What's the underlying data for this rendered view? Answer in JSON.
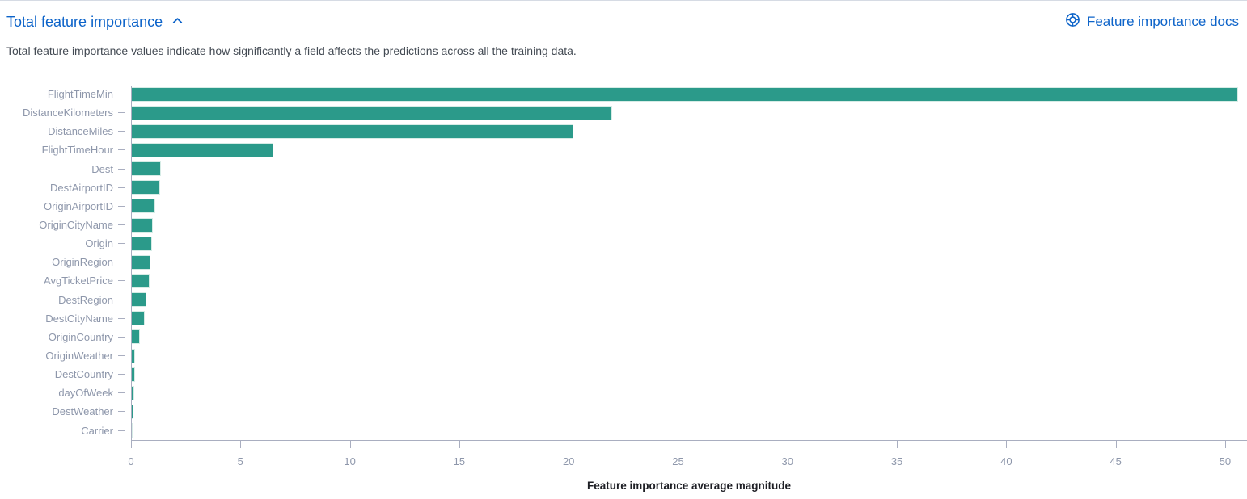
{
  "header": {
    "title": "Total feature importance",
    "collapse_icon": "chevron-up-icon",
    "docs_link": {
      "label": "Feature importance docs",
      "icon": "help-lifebuoy-icon"
    },
    "link_color": "#0c63c9"
  },
  "description": "Total feature importance values indicate how significantly a field affects the predictions across all the training data.",
  "chart_data": {
    "type": "bar",
    "orientation": "horizontal",
    "title": "",
    "xlabel": "Feature importance average magnitude",
    "ylabel": "",
    "categories": [
      "FlightTimeMin",
      "DistanceKilometers",
      "DistanceMiles",
      "FlightTimeHour",
      "Dest",
      "DestAirportID",
      "OriginAirportID",
      "OriginCityName",
      "Origin",
      "OriginRegion",
      "AvgTicketPrice",
      "DestRegion",
      "DestCityName",
      "OriginCountry",
      "OriginWeather",
      "DestCountry",
      "dayOfWeek",
      "DestWeather",
      "Carrier"
    ],
    "values": [
      50.6,
      22.0,
      20.2,
      6.5,
      1.37,
      1.32,
      1.1,
      1.0,
      0.95,
      0.9,
      0.85,
      0.72,
      0.62,
      0.42,
      0.2,
      0.18,
      0.15,
      0.11,
      0.04
    ],
    "xticks": [
      0,
      5,
      10,
      15,
      20,
      25,
      30,
      35,
      40,
      45,
      50
    ],
    "xlim": [
      0,
      51
    ],
    "grid": false,
    "legend": "none",
    "colors": {
      "bar": "#2b9a8a",
      "bar_stroke": "#d6ece6",
      "axis_line": "#a9aec0",
      "axis_text": "#8e97ab",
      "axis_title_text": "#1d1e24",
      "description_text": "#444b54",
      "panel_top_border": "#d6dbe4"
    }
  }
}
